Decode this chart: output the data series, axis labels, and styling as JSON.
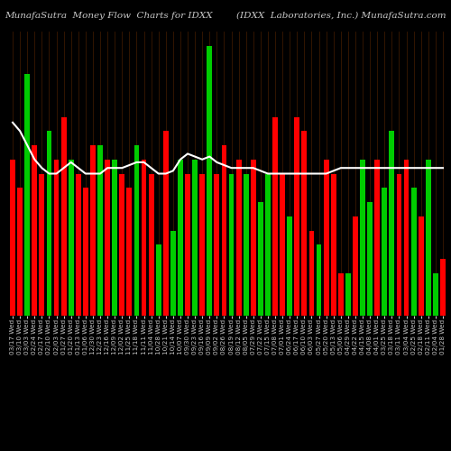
{
  "title_left": "MunafaSutra  Money Flow  Charts for IDXX",
  "title_right": "(IDXX  Laboratories, Inc.) MunafaSutra.com",
  "background_color": "#000000",
  "bar_colors": [
    "red",
    "red",
    "green",
    "red",
    "red",
    "green",
    "red",
    "red",
    "green",
    "red",
    "red",
    "red",
    "green",
    "red",
    "green",
    "red",
    "red",
    "green",
    "red",
    "red",
    "green",
    "red",
    "green",
    "green",
    "red",
    "green",
    "red",
    "green",
    "red",
    "red",
    "green",
    "red",
    "green",
    "red",
    "green",
    "green",
    "red",
    "red",
    "green",
    "red",
    "red",
    "red",
    "green",
    "red",
    "red",
    "red",
    "green",
    "red",
    "green",
    "green",
    "red",
    "green",
    "green",
    "red",
    "red",
    "green",
    "red",
    "green",
    "green",
    "red"
  ],
  "bar_heights": [
    55,
    45,
    85,
    60,
    50,
    65,
    55,
    70,
    55,
    50,
    45,
    60,
    60,
    55,
    55,
    50,
    45,
    60,
    55,
    50,
    25,
    65,
    30,
    55,
    50,
    55,
    50,
    95,
    50,
    60,
    50,
    55,
    50,
    55,
    40,
    50,
    70,
    50,
    35,
    70,
    65,
    30,
    25,
    55,
    50,
    15,
    15,
    35,
    55,
    40,
    55,
    45,
    65,
    50,
    55,
    45,
    35,
    55,
    15,
    20
  ],
  "line_values": [
    68,
    65,
    60,
    55,
    52,
    50,
    50,
    52,
    54,
    52,
    50,
    50,
    50,
    52,
    52,
    52,
    53,
    54,
    54,
    52,
    50,
    50,
    51,
    55,
    57,
    56,
    55,
    56,
    54,
    53,
    52,
    52,
    52,
    52,
    51,
    50,
    50,
    50,
    50,
    50,
    50,
    50,
    50,
    50,
    51,
    52,
    52,
    52,
    52,
    52,
    52,
    52,
    52,
    52,
    52,
    52,
    52,
    52,
    52,
    52
  ],
  "n_bars": 60,
  "xlabel_dates": [
    "03/17 Wed",
    "03/10 Wed",
    "03/03 Wed",
    "02/24 Wed",
    "02/17 Wed",
    "02/10 Wed",
    "02/03 Wed",
    "01/27 Wed",
    "01/20 Wed",
    "01/13 Wed",
    "01/06 Wed",
    "12/30 Wed",
    "12/23 Wed",
    "12/16 Wed",
    "12/09 Wed",
    "12/02 Wed",
    "11/25 Wed",
    "11/18 Wed",
    "11/11 Wed",
    "11/04 Wed",
    "10/28 Wed",
    "10/21 Wed",
    "10/14 Wed",
    "10/07 Wed",
    "09/30 Wed",
    "09/23 Wed",
    "09/16 Wed",
    "09/09 Wed",
    "09/02 Wed",
    "08/26 Wed",
    "08/19 Wed",
    "08/12 Wed",
    "08/05 Wed",
    "07/29 Wed",
    "07/22 Wed",
    "07/15 Wed",
    "07/08 Wed",
    "07/01 Wed",
    "06/24 Wed",
    "06/17 Wed",
    "06/10 Wed",
    "06/03 Wed",
    "05/27 Wed",
    "05/20 Wed",
    "05/13 Wed",
    "05/06 Wed",
    "04/29 Wed",
    "04/22 Wed",
    "04/15 Wed",
    "04/08 Wed",
    "04/01 Wed",
    "03/25 Wed",
    "03/18 Wed",
    "03/11 Wed",
    "03/04 Wed",
    "02/25 Wed",
    "02/18 Wed",
    "02/11 Wed",
    "02/04 Wed",
    "01/28 Wed"
  ],
  "grid_color": "#3a1800",
  "line_color": "#ffffff",
  "red_color": "#ff0000",
  "green_color": "#00cc00",
  "title_color": "#c8c8c8",
  "title_fontsize": 7.5,
  "tick_fontsize": 5.2,
  "bar_width": 0.72
}
